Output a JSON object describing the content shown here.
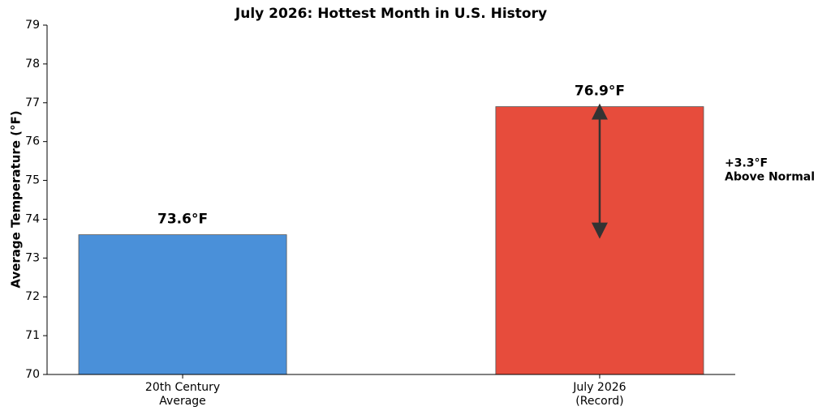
{
  "chart_data": {
    "type": "bar",
    "title": "July 2026: Hottest Month in U.S. History",
    "y_label": "Average Temperature (°F)",
    "categories": [
      [
        "20th Century",
        "Average"
      ],
      [
        "July 2026",
        "(Record)"
      ]
    ],
    "values": [
      73.6,
      76.9
    ],
    "value_labels": [
      "73.6°F",
      "76.9°F"
    ],
    "colors": [
      "#4a90d9",
      "#e74c3c"
    ],
    "annotation": [
      "+3.3°F",
      "Above Normal"
    ],
    "annotation_color": "#e74c3c",
    "ylim": [
      70,
      79
    ],
    "yticks": [
      70,
      71,
      72,
      73,
      74,
      75,
      76,
      77,
      78,
      79
    ],
    "grid": false
  }
}
